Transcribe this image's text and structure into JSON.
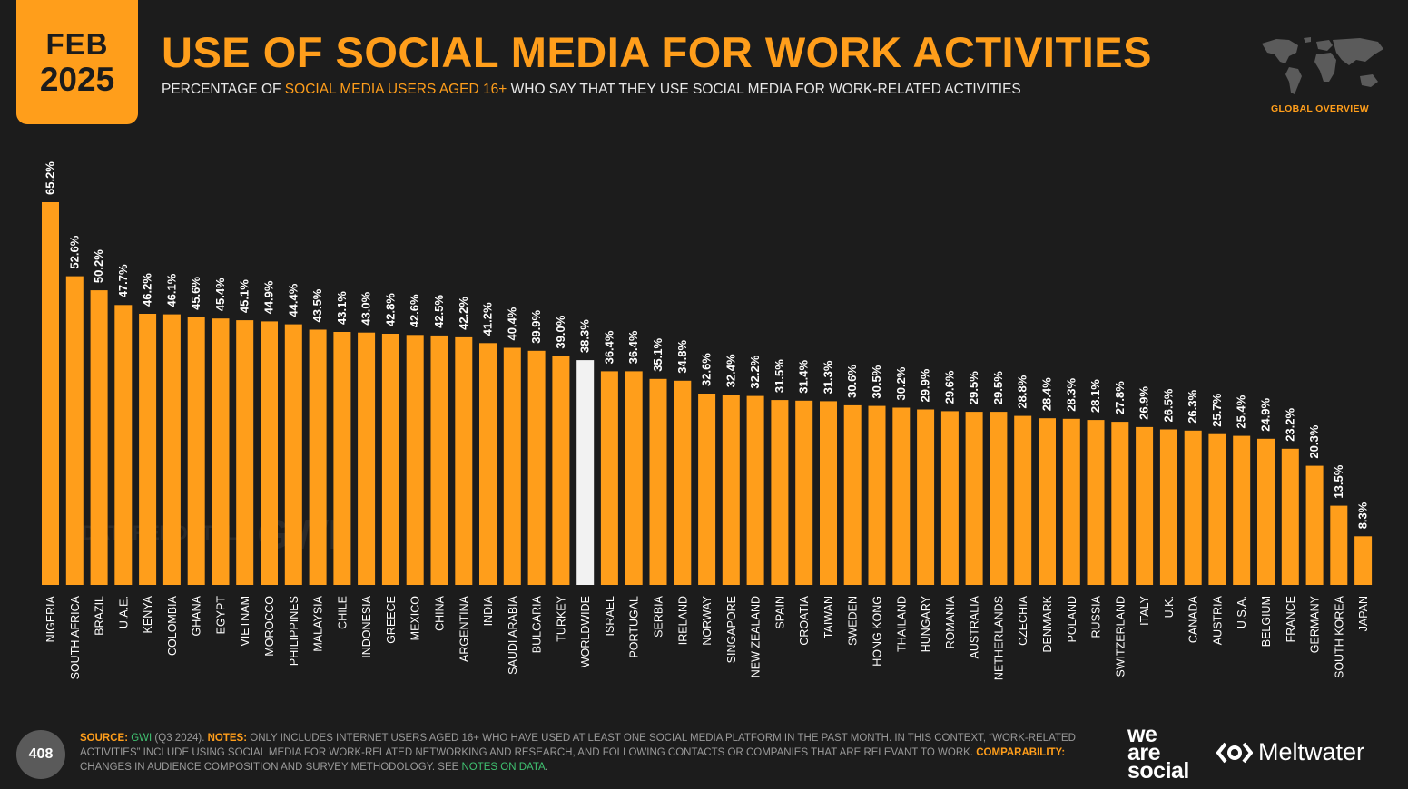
{
  "header": {
    "badge_month": "FEB",
    "badge_year": "2025",
    "title": "USE OF SOCIAL MEDIA FOR WORK ACTIVITIES",
    "subtitle_pre": "PERCENTAGE OF ",
    "subtitle_highlight": "SOCIAL MEDIA USERS AGED 16+",
    "subtitle_post": " WHO SAY THAT THEY USE SOCIAL MEDIA FOR WORK-RELATED ACTIVITIES",
    "section": "GLOBAL OVERVIEW"
  },
  "watermark": {
    "left": "DATAREPORTAL",
    "right": "GWI."
  },
  "footer": {
    "page_number": "408",
    "source_label": "SOURCE:",
    "source_name": "GWI",
    "source_detail": " (Q3 2024). ",
    "notes_label": "NOTES:",
    "notes_text": " ONLY INCLUDES INTERNET USERS AGED 16+ WHO HAVE USED AT LEAST ONE SOCIAL MEDIA PLATFORM IN THE PAST MONTH. IN THIS CONTEXT, “WORK-RELATED ACTIVITIES” INCLUDE USING SOCIAL MEDIA FOR WORK-RELATED NETWORKING AND RESEARCH, AND FOLLOWING CONTACTS OR COMPANIES THAT ARE RELEVANT TO WORK. ",
    "comparability_label": "COMPARABILITY:",
    "comparability_text": " CHANGES IN AUDIENCE COMPOSITION AND SURVEY METHODOLOGY. SEE ",
    "notes_link": "NOTES ON DATA",
    "end": "."
  },
  "logos": {
    "we_are_social": [
      "we",
      "are",
      "social"
    ],
    "meltwater": "Meltwater"
  },
  "colors": {
    "accent": "#ff9e1b",
    "background": "#1c1c1c",
    "highlight_bar": "#f2f2f2",
    "link": "#3fc070"
  },
  "chart_data": {
    "type": "bar",
    "categories": [
      "NIGERIA",
      "SOUTH AFRICA",
      "BRAZIL",
      "U.A.E.",
      "KENYA",
      "COLOMBIA",
      "GHANA",
      "EGYPT",
      "VIETNAM",
      "MOROCCO",
      "PHILIPPINES",
      "MALAYSIA",
      "CHILE",
      "INDONESIA",
      "GREECE",
      "MEXICO",
      "CHINA",
      "ARGENTINA",
      "INDIA",
      "SAUDI ARABIA",
      "BULGARIA",
      "TURKEY",
      "WORLDWIDE",
      "ISRAEL",
      "PORTUGAL",
      "SERBIA",
      "IRELAND",
      "NORWAY",
      "SINGAPORE",
      "NEW ZEALAND",
      "SPAIN",
      "CROATIA",
      "TAIWAN",
      "SWEDEN",
      "HONG KONG",
      "THAILAND",
      "HUNGARY",
      "ROMANIA",
      "AUSTRALIA",
      "NETHERLANDS",
      "CZECHIA",
      "DENMARK",
      "POLAND",
      "RUSSIA",
      "SWITZERLAND",
      "ITALY",
      "U.K.",
      "CANADA",
      "AUSTRIA",
      "U.S.A.",
      "BELGIUM",
      "FRANCE",
      "GERMANY",
      "SOUTH KOREA",
      "JAPAN"
    ],
    "values": [
      65.2,
      52.6,
      50.2,
      47.7,
      46.2,
      46.1,
      45.6,
      45.4,
      45.1,
      44.9,
      44.4,
      43.5,
      43.1,
      43.0,
      42.8,
      42.6,
      42.5,
      42.2,
      41.2,
      40.4,
      39.9,
      39.0,
      38.3,
      36.4,
      36.4,
      35.1,
      34.8,
      32.6,
      32.4,
      32.2,
      31.5,
      31.4,
      31.3,
      30.6,
      30.5,
      30.2,
      29.9,
      29.6,
      29.5,
      29.5,
      28.8,
      28.4,
      28.3,
      28.1,
      27.8,
      26.9,
      26.5,
      26.3,
      25.7,
      25.4,
      24.9,
      23.2,
      20.3,
      13.5,
      8.3
    ],
    "labels": [
      "65.2%",
      "52.6%",
      "50.2%",
      "47.7%",
      "46.2%",
      "46.1%",
      "45.6%",
      "45.4%",
      "45.1%",
      "44.9%",
      "44.4%",
      "43.5%",
      "43.1%",
      "43.0%",
      "42.8%",
      "42.6%",
      "42.5%",
      "42.2%",
      "41.2%",
      "40.4%",
      "39.9%",
      "39.0%",
      "38.3%",
      "36.4%",
      "36.4%",
      "35.1%",
      "34.8%",
      "32.6%",
      "32.4%",
      "32.2%",
      "31.5%",
      "31.4%",
      "31.3%",
      "30.6%",
      "30.5%",
      "30.2%",
      "29.9%",
      "29.6%",
      "29.5%",
      "29.5%",
      "28.8%",
      "28.4%",
      "28.3%",
      "28.1%",
      "27.8%",
      "26.9%",
      "26.5%",
      "26.3%",
      "25.7%",
      "25.4%",
      "24.9%",
      "23.2%",
      "20.3%",
      "13.5%",
      "8.3%"
    ],
    "highlight_category": "WORLDWIDE",
    "ylim": [
      0,
      65.2
    ],
    "grid": false,
    "unit": "%"
  }
}
